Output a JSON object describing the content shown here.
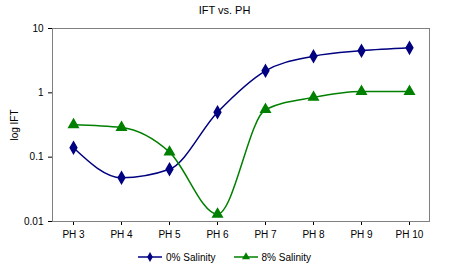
{
  "chart_data": {
    "type": "line",
    "title": "IFT vs. PH",
    "y_label": "log IFT",
    "categories": [
      "PH 3",
      "PH 4",
      "PH 5",
      "PH 6",
      "PH 7",
      "PH 8",
      "PH 9",
      "PH 10"
    ],
    "series": [
      {
        "name": "0% Salinity",
        "color": "#000080",
        "marker": "diamond",
        "values": [
          0.14,
          0.048,
          0.065,
          0.5,
          2.2,
          3.7,
          4.5,
          5.0
        ]
      },
      {
        "name": "8% Salinity",
        "color": "#008000",
        "marker": "triangle",
        "values": [
          0.32,
          0.29,
          0.12,
          0.013,
          0.55,
          0.85,
          1.05,
          1.05
        ]
      }
    ],
    "log": "y",
    "ylim": [
      0.01,
      10
    ],
    "yticks": [
      0.01,
      0.1,
      1,
      10
    ],
    "grid": false,
    "legend": "bottom"
  }
}
